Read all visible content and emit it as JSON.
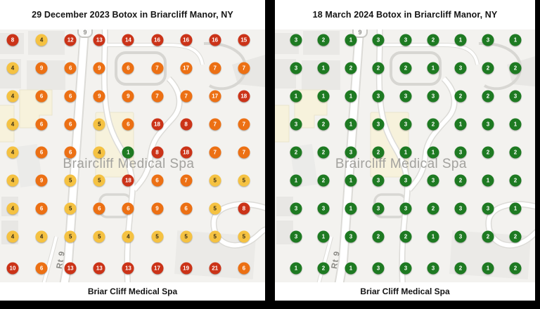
{
  "colors": {
    "g": "#1E7A22",
    "y": "#F5C242",
    "o": "#EC7014",
    "r": "#CB3318"
  },
  "panels": [
    {
      "title": "29 December 2023 Botox in Briarcliff Manor, NY",
      "watermark": "Braircliff Medical Spa",
      "route_shield": "9",
      "road_label": "Rt 9",
      "footer": "Briar Cliff Medical Spa",
      "values": [
        [
          8,
          4,
          12,
          13,
          14,
          16,
          16,
          16,
          15
        ],
        [
          4,
          9,
          6,
          9,
          6,
          7,
          17,
          7,
          7
        ],
        [
          4,
          6,
          6,
          9,
          9,
          7,
          7,
          17,
          18
        ],
        [
          4,
          6,
          6,
          5,
          6,
          18,
          8,
          7,
          7
        ],
        [
          4,
          6,
          6,
          4,
          1,
          8,
          18,
          7,
          7
        ],
        [
          4,
          9,
          5,
          5,
          18,
          6,
          7,
          5,
          5
        ],
        [
          4,
          6,
          5,
          6,
          6,
          9,
          6,
          5,
          8
        ],
        [
          4,
          4,
          5,
          5,
          4,
          5,
          5,
          5,
          5
        ],
        [
          10,
          6,
          13,
          13,
          13,
          17,
          19,
          21,
          6
        ]
      ],
      "pin_colors": [
        [
          "r",
          "y",
          "r",
          "r",
          "r",
          "r",
          "r",
          "r",
          "r"
        ],
        [
          "y",
          "o",
          "o",
          "o",
          "o",
          "o",
          "o",
          "o",
          "o"
        ],
        [
          "y",
          "o",
          "o",
          "o",
          "o",
          "o",
          "o",
          "o",
          "r"
        ],
        [
          "y",
          "o",
          "o",
          "y",
          "o",
          "r",
          "r",
          "o",
          "o"
        ],
        [
          "y",
          "o",
          "o",
          "y",
          "g",
          "r",
          "r",
          "o",
          "o"
        ],
        [
          "y",
          "o",
          "y",
          "y",
          "r",
          "o",
          "o",
          "y",
          "y"
        ],
        [
          "y",
          "o",
          "y",
          "o",
          "o",
          "o",
          "o",
          "y",
          "r"
        ],
        [
          "y",
          "y",
          "y",
          "y",
          "y",
          "y",
          "y",
          "y",
          "y"
        ],
        [
          "r",
          "o",
          "r",
          "r",
          "r",
          "r",
          "r",
          "r",
          "o"
        ]
      ]
    },
    {
      "title": "18 March 2024 Botox in Briarcliff Manor, NY",
      "watermark": "Braircliff Medical Spa",
      "route_shield": "9",
      "road_label": "Rt 9",
      "footer": "Briar Cliff Medical Spa",
      "values": [
        [
          3,
          2,
          1,
          3,
          3,
          2,
          1,
          3,
          1
        ],
        [
          3,
          1,
          2,
          2,
          2,
          1,
          3,
          2,
          2
        ],
        [
          1,
          1,
          1,
          3,
          3,
          3,
          2,
          2,
          3
        ],
        [
          3,
          2,
          1,
          3,
          3,
          2,
          1,
          3,
          1
        ],
        [
          2,
          2,
          3,
          2,
          1,
          1,
          3,
          2,
          2
        ],
        [
          1,
          2,
          1,
          3,
          3,
          3,
          2,
          1,
          2
        ],
        [
          3,
          3,
          1,
          3,
          3,
          2,
          3,
          3,
          1
        ],
        [
          3,
          1,
          3,
          2,
          2,
          1,
          3,
          2,
          2
        ],
        [
          1,
          2,
          1,
          3,
          3,
          3,
          2,
          1,
          2
        ]
      ],
      "pin_colors": [
        [
          "g",
          "g",
          "g",
          "g",
          "g",
          "g",
          "g",
          "g",
          "g"
        ],
        [
          "g",
          "g",
          "g",
          "g",
          "g",
          "g",
          "g",
          "g",
          "g"
        ],
        [
          "g",
          "g",
          "g",
          "g",
          "g",
          "g",
          "g",
          "g",
          "g"
        ],
        [
          "g",
          "g",
          "g",
          "g",
          "g",
          "g",
          "g",
          "g",
          "g"
        ],
        [
          "g",
          "g",
          "g",
          "g",
          "g",
          "g",
          "g",
          "g",
          "g"
        ],
        [
          "g",
          "g",
          "g",
          "g",
          "g",
          "g",
          "g",
          "g",
          "g"
        ],
        [
          "g",
          "g",
          "g",
          "g",
          "g",
          "g",
          "g",
          "g",
          "g"
        ],
        [
          "g",
          "g",
          "g",
          "g",
          "g",
          "g",
          "g",
          "g",
          "g"
        ],
        [
          "g",
          "g",
          "g",
          "g",
          "g",
          "g",
          "g",
          "g",
          "g"
        ]
      ]
    }
  ]
}
